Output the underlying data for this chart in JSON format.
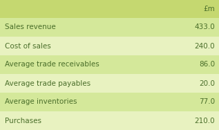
{
  "header": "£m",
  "rows": [
    {
      "label": "Sales revenue",
      "value": "433.0"
    },
    {
      "label": "Cost of sales",
      "value": "240.0"
    },
    {
      "label": "Average trade receivables",
      "value": "86.0"
    },
    {
      "label": "Average trade payables",
      "value": "20.0"
    },
    {
      "label": "Average inventories",
      "value": "77.0"
    },
    {
      "label": "Purchases",
      "value": "210.0"
    }
  ],
  "header_bg": "#c5d870",
  "row_bg_dark": "#d4e89a",
  "row_bg_light": "#e8f2c0",
  "text_color": "#4a6e2a",
  "fig_bg": "#ffffff",
  "bottom_border_color": "#c0c0c0",
  "font_size": 7.5,
  "header_font_size": 7.5
}
